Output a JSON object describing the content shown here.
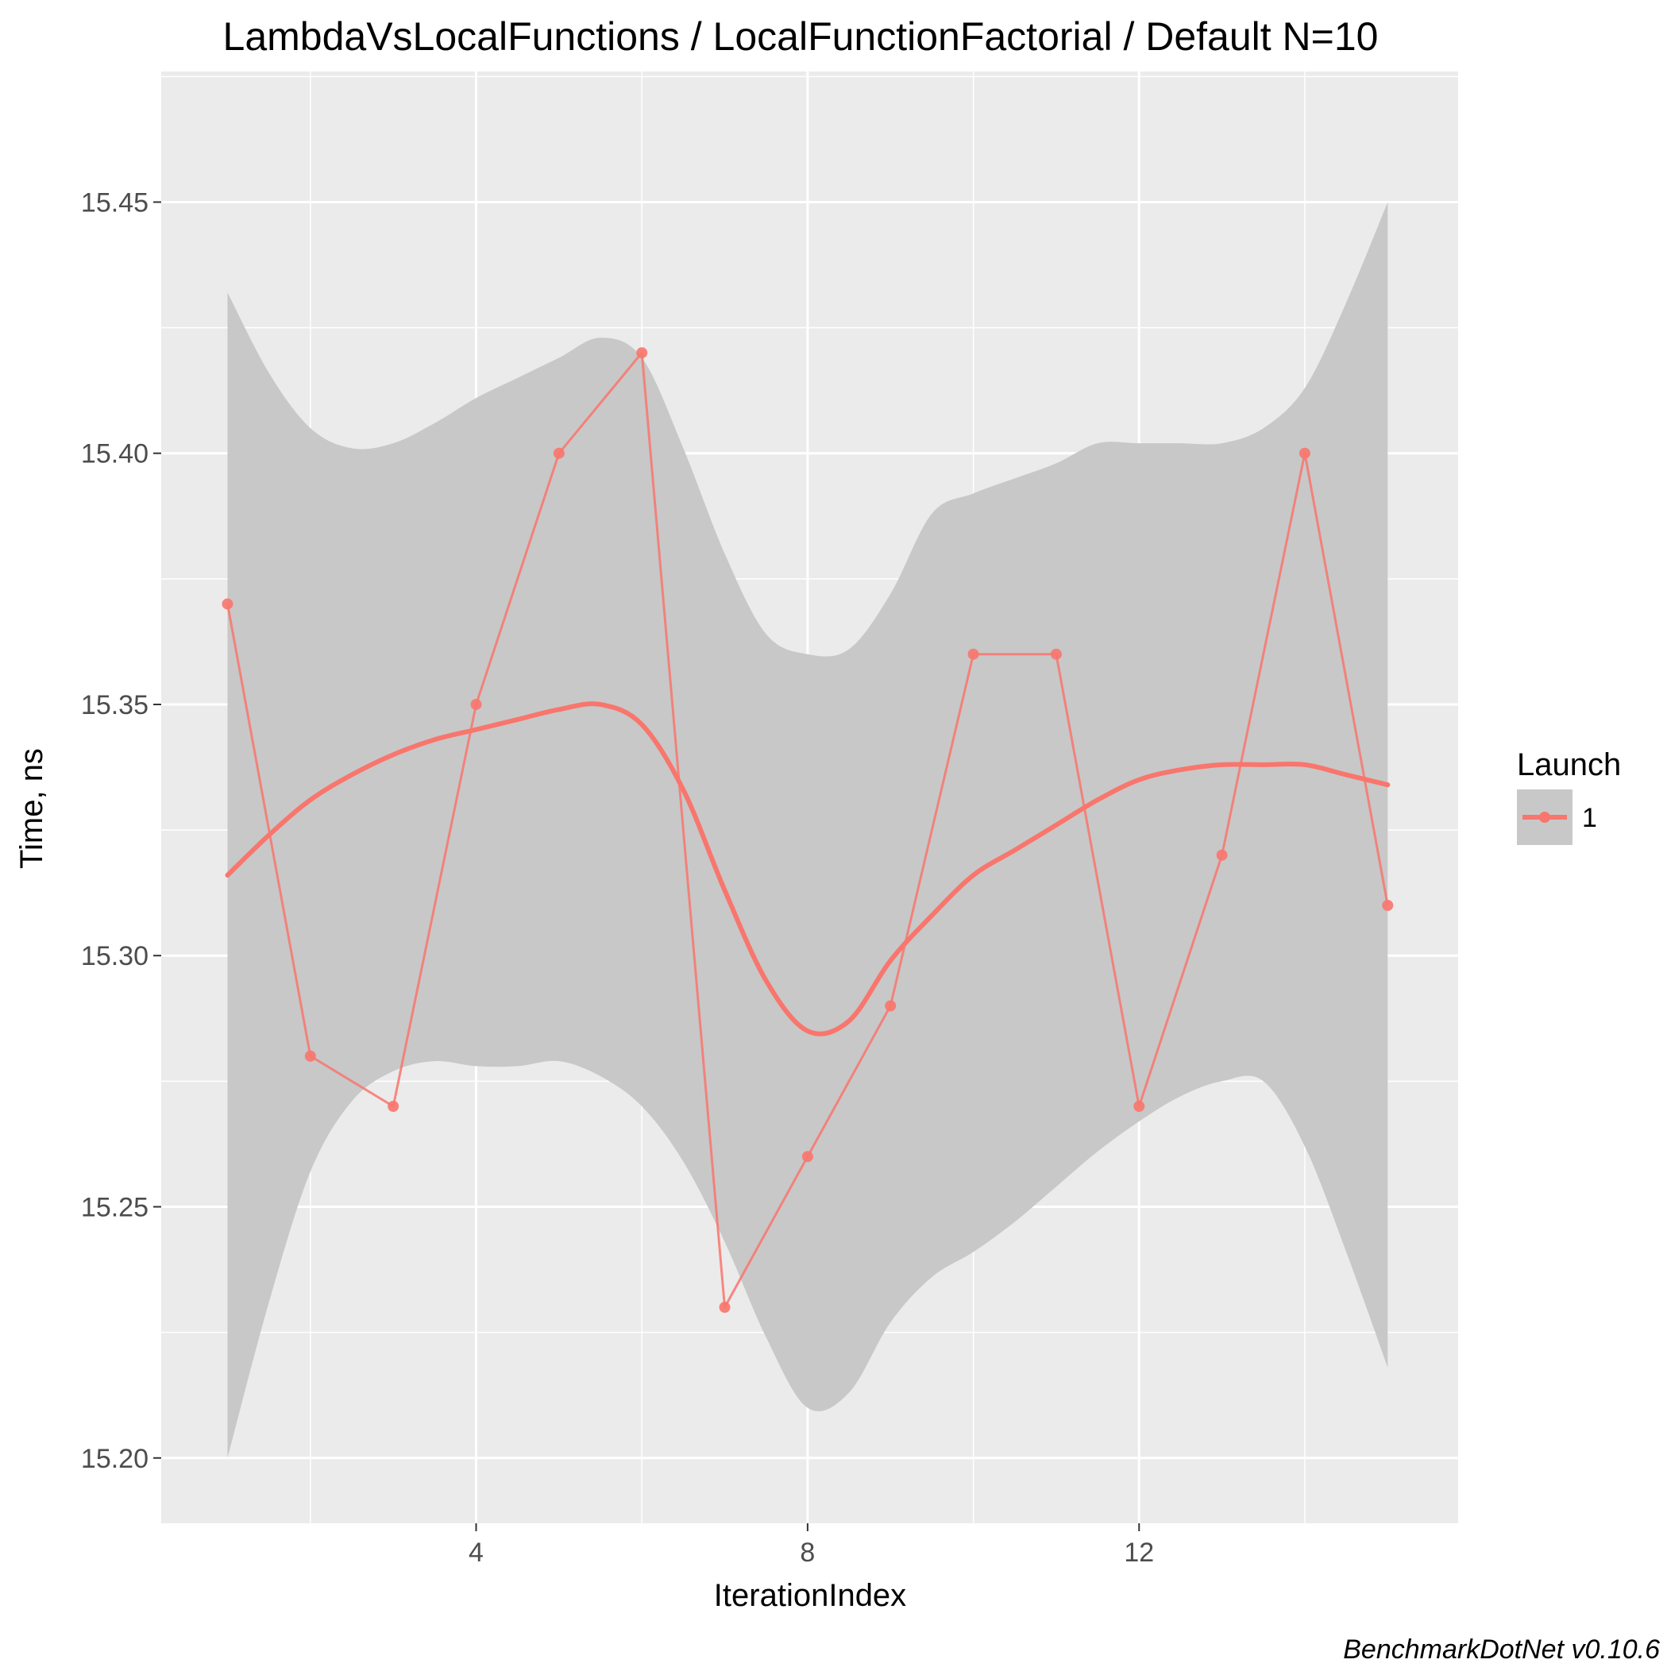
{
  "chart_data": {
    "type": "line",
    "title": "LambdaVsLocalFunctions / LocalFunctionFactorial / Default N=10",
    "xlabel": "IterationIndex",
    "ylabel": "Time, ns",
    "caption": "BenchmarkDotNet v0.10.6",
    "xlim": [
      0.2,
      15.85
    ],
    "ylim": [
      15.187,
      15.476
    ],
    "x_ticks": [
      4,
      8,
      12
    ],
    "x_tick_labels": [
      "4",
      "8",
      "12"
    ],
    "y_ticks": [
      15.2,
      15.25,
      15.3,
      15.35,
      15.4,
      15.45
    ],
    "y_tick_labels": [
      "15.20",
      "15.25",
      "15.30",
      "15.35",
      "15.40",
      "15.45"
    ],
    "grid": true,
    "legend": {
      "title": "Launch",
      "position": "right",
      "entries": [
        "1"
      ]
    },
    "colors": {
      "series": "#f8766d",
      "band": "#c8c8c8",
      "panel": "#ebebeb",
      "grid": "#ffffff"
    },
    "series": [
      {
        "name": "1",
        "x": [
          1,
          2,
          3,
          4,
          5,
          6,
          7,
          8,
          9,
          10,
          11,
          12,
          13,
          14,
          15
        ],
        "values": [
          15.37,
          15.28,
          15.27,
          15.35,
          15.4,
          15.42,
          15.23,
          15.26,
          15.29,
          15.36,
          15.36,
          15.27,
          15.32,
          15.4,
          15.31
        ]
      }
    ],
    "smooth": {
      "method": "loess",
      "x": [
        1,
        1.5,
        2,
        2.5,
        3,
        3.5,
        4,
        4.5,
        5,
        5.5,
        6,
        6.5,
        7,
        7.5,
        8,
        8.5,
        9,
        9.5,
        10,
        10.5,
        11,
        11.5,
        12,
        12.5,
        13,
        13.5,
        14,
        14.5,
        15
      ],
      "fit": [
        15.316,
        15.324,
        15.331,
        15.336,
        15.34,
        15.343,
        15.345,
        15.347,
        15.349,
        15.35,
        15.346,
        15.333,
        15.313,
        15.295,
        15.285,
        15.287,
        15.299,
        15.308,
        15.316,
        15.321,
        15.326,
        15.331,
        15.335,
        15.337,
        15.338,
        15.338,
        15.338,
        15.336,
        15.334
      ],
      "upper": [
        15.432,
        15.416,
        15.405,
        15.401,
        15.402,
        15.406,
        15.411,
        15.415,
        15.419,
        15.423,
        15.419,
        15.401,
        15.38,
        15.364,
        15.36,
        15.361,
        15.372,
        15.388,
        15.392,
        15.395,
        15.398,
        15.402,
        15.402,
        15.402,
        15.402,
        15.405,
        15.413,
        15.43,
        15.45
      ],
      "lower": [
        15.2,
        15.231,
        15.257,
        15.271,
        15.277,
        15.279,
        15.278,
        15.278,
        15.279,
        15.276,
        15.27,
        15.259,
        15.243,
        15.224,
        15.21,
        15.213,
        15.227,
        15.236,
        15.241,
        15.247,
        15.254,
        15.261,
        15.267,
        15.272,
        15.275,
        15.275,
        15.262,
        15.241,
        15.218
      ]
    }
  }
}
